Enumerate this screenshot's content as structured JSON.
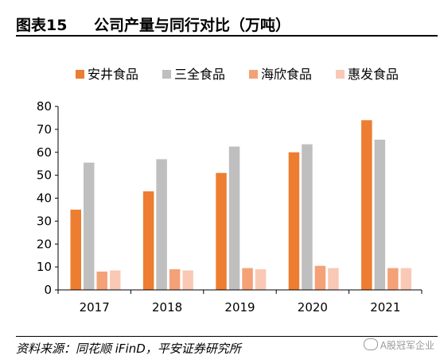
{
  "header": {
    "figure_number": "图表15",
    "title": "公司产量与同行对比（万吨）"
  },
  "chart_data": {
    "type": "bar",
    "title": "公司产量与同行对比（万吨）",
    "categories": [
      "2017",
      "2018",
      "2019",
      "2020",
      "2021"
    ],
    "series": [
      {
        "name": "安井食品",
        "color": "#ED7D31",
        "values": [
          35,
          43,
          51,
          60,
          74
        ]
      },
      {
        "name": "三全食品",
        "color": "#BFBFBF",
        "values": [
          55.5,
          57,
          62.5,
          63.5,
          65.5
        ]
      },
      {
        "name": "海欣食品",
        "color": "#F4A178",
        "values": [
          8,
          9,
          9.5,
          10.5,
          9.5
        ]
      },
      {
        "name": "惠发食品",
        "color": "#F9C9B5",
        "values": [
          8.5,
          8.5,
          9,
          9.5,
          9.5
        ]
      }
    ],
    "yticks": [
      0,
      10,
      20,
      30,
      40,
      50,
      60,
      70,
      80
    ],
    "ylim": [
      0,
      80
    ],
    "grid": false,
    "legend_position": "top",
    "xlabel": "",
    "ylabel": ""
  },
  "footer": {
    "source": "资料来源：同花顺 iFinD，平安证券研究所",
    "watermark": "A股冠军企业"
  }
}
